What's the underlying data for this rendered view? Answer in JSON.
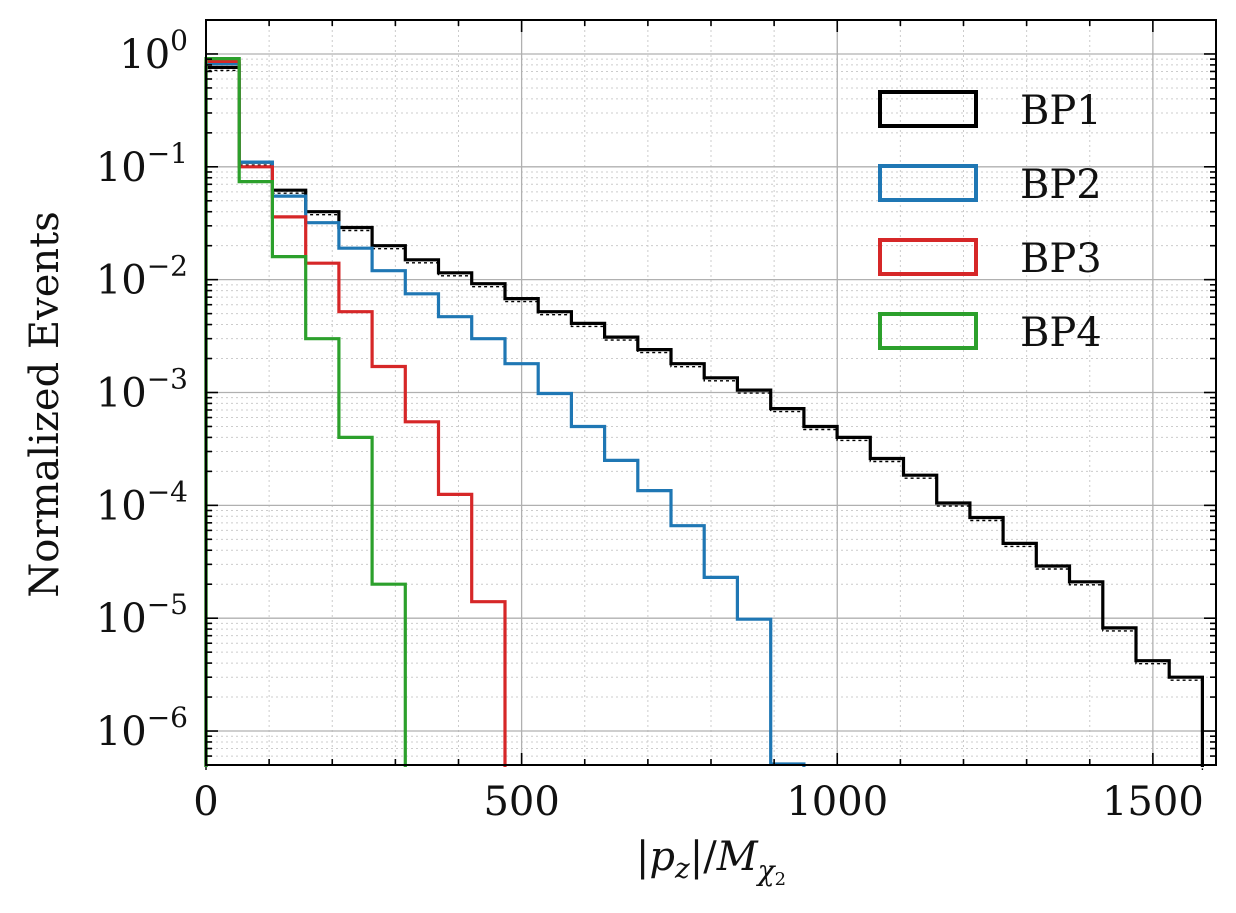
{
  "chart_data": {
    "type": "histogram-step",
    "title": "",
    "xlabel": "|p_z|/M_χ2",
    "xlabel_parts": {
      "pre": "|",
      "p": "p",
      "z": "z",
      "mid": "|/",
      "M": "M",
      "chi": "χ",
      "two": "2"
    },
    "ylabel": "Normalized Events",
    "xscale": "linear",
    "yscale": "log",
    "xlim": [
      0,
      1600
    ],
    "ylim": [
      5e-07,
      2
    ],
    "xticks": [
      0,
      500,
      1000,
      1500
    ],
    "xtick_labels": [
      "0",
      "500",
      "1000",
      "1500"
    ],
    "yticks": [
      1e-06,
      1e-05,
      0.0001,
      0.001,
      0.01,
      0.1,
      1
    ],
    "ytick_labels": [
      {
        "base": "10",
        "exp": "−6"
      },
      {
        "base": "10",
        "exp": "−5"
      },
      {
        "base": "10",
        "exp": "−4"
      },
      {
        "base": "10",
        "exp": "−3"
      },
      {
        "base": "10",
        "exp": "−2"
      },
      {
        "base": "10",
        "exp": "−1"
      },
      {
        "base": "10",
        "exp": "0"
      }
    ],
    "grid": true,
    "legend_position": "top-right",
    "series": [
      {
        "name": "BP1",
        "color": "#000000",
        "edges": [
          0,
          52.6,
          105.2,
          157.9,
          210.5,
          263.1,
          315.7,
          368.3,
          420.9,
          473.6,
          526.2,
          578.8,
          631.4,
          684.0,
          736.6,
          789.3,
          841.9,
          894.5,
          947.1,
          999.7,
          1052.3,
          1105.0,
          1157.6,
          1210.2,
          1262.8,
          1315.4,
          1368.0,
          1420.7,
          1473.3,
          1525.9,
          1578.5
        ],
        "values": [
          0.76,
          0.11,
          0.062,
          0.04,
          0.029,
          0.02,
          0.015,
          0.0115,
          0.0092,
          0.0068,
          0.0052,
          0.0041,
          0.0031,
          0.0024,
          0.0018,
          0.00135,
          0.00105,
          0.00072,
          0.0005,
          0.0004,
          0.00026,
          0.000185,
          0.000105,
          7.8e-05,
          4.6e-05,
          2.9e-05,
          2.1e-05,
          8.2e-06,
          4.2e-06,
          3e-06
        ]
      },
      {
        "name": "BP2",
        "color": "#1f77b4",
        "edges": [
          0,
          52.6,
          105.2,
          157.9,
          210.5,
          263.1,
          315.7,
          368.3,
          420.9,
          473.6,
          526.2,
          578.8,
          631.4,
          684.0,
          736.6,
          789.3,
          841.9,
          894.5,
          947.1
        ],
        "values": [
          0.82,
          0.11,
          0.055,
          0.032,
          0.019,
          0.012,
          0.0075,
          0.0047,
          0.003,
          0.0018,
          0.00098,
          0.0005,
          0.00025,
          0.000135,
          6.6e-05,
          2.3e-05,
          9.8e-06,
          5.1e-07
        ]
      },
      {
        "name": "BP3",
        "color": "#d62728",
        "edges": [
          0,
          52.6,
          105.2,
          157.9,
          210.5,
          263.1,
          315.7,
          368.3,
          420.9,
          473.6
        ],
        "values": [
          0.86,
          0.1,
          0.036,
          0.014,
          0.0052,
          0.0017,
          0.00055,
          0.000125,
          1.4e-05
        ]
      },
      {
        "name": "BP4",
        "color": "#2ca02c",
        "edges": [
          0,
          52.6,
          105.2,
          157.9,
          210.5,
          263.1,
          315.7
        ],
        "values": [
          0.91,
          0.074,
          0.016,
          0.003,
          0.0004,
          2e-05
        ]
      }
    ]
  }
}
